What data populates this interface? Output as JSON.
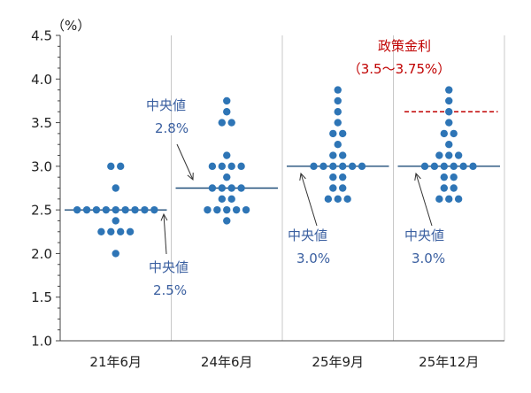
{
  "chart_data": {
    "type": "scatter",
    "unit_label": "（%）",
    "ylim": [
      1.0,
      4.5
    ],
    "yticks": [
      "1.0",
      "1.5",
      "2.0",
      "2.5",
      "3.0",
      "3.5",
      "4.0",
      "4.5"
    ],
    "ytick_values": [
      1.0,
      1.5,
      2.0,
      2.5,
      3.0,
      3.5,
      4.0,
      4.5
    ],
    "grid": "vertical-only",
    "categories": [
      "21年6月",
      "24年6月",
      "25年9月",
      "25年12月"
    ],
    "series": [
      {
        "category": "21年6月",
        "median": 2.5,
        "points": [
          {
            "y": 3.0,
            "n": 2
          },
          {
            "y": 2.75,
            "n": 1
          },
          {
            "y": 2.5,
            "n": 9
          },
          {
            "y": 2.375,
            "n": 1
          },
          {
            "y": 2.25,
            "n": 4
          },
          {
            "y": 2.0,
            "n": 1
          }
        ]
      },
      {
        "category": "24年6月",
        "median": 2.75,
        "points": [
          {
            "y": 3.75,
            "n": 1
          },
          {
            "y": 3.625,
            "n": 1
          },
          {
            "y": 3.5,
            "n": 2
          },
          {
            "y": 3.125,
            "n": 1
          },
          {
            "y": 3.0,
            "n": 4
          },
          {
            "y": 2.875,
            "n": 1
          },
          {
            "y": 2.75,
            "n": 4
          },
          {
            "y": 2.625,
            "n": 2
          },
          {
            "y": 2.5,
            "n": 5
          },
          {
            "y": 2.375,
            "n": 1
          }
        ]
      },
      {
        "category": "25年9月",
        "median": 3.0,
        "points": [
          {
            "y": 3.875,
            "n": 1
          },
          {
            "y": 3.75,
            "n": 1
          },
          {
            "y": 3.625,
            "n": 1
          },
          {
            "y": 3.5,
            "n": 1
          },
          {
            "y": 3.375,
            "n": 2
          },
          {
            "y": 3.25,
            "n": 1
          },
          {
            "y": 3.125,
            "n": 2
          },
          {
            "y": 3.0,
            "n": 6
          },
          {
            "y": 2.875,
            "n": 2
          },
          {
            "y": 2.75,
            "n": 2
          },
          {
            "y": 2.625,
            "n": 3
          }
        ]
      },
      {
        "category": "25年12月",
        "median": 3.0,
        "points": [
          {
            "y": 3.875,
            "n": 1
          },
          {
            "y": 3.75,
            "n": 1
          },
          {
            "y": 3.625,
            "n": 1
          },
          {
            "y": 3.5,
            "n": 1
          },
          {
            "y": 3.375,
            "n": 2
          },
          {
            "y": 3.25,
            "n": 1
          },
          {
            "y": 3.125,
            "n": 3
          },
          {
            "y": 3.0,
            "n": 6
          },
          {
            "y": 2.875,
            "n": 2
          },
          {
            "y": 2.75,
            "n": 2
          },
          {
            "y": 2.625,
            "n": 3
          }
        ]
      }
    ],
    "policy_rate": {
      "label": "政策金利",
      "range_label": "（3.5〜3.75%）",
      "value": 3.625,
      "category": "25年12月"
    },
    "annotations": [
      {
        "category": "21年6月",
        "label": "中央値",
        "value": "2.5%"
      },
      {
        "category": "24年6月",
        "label": "中央値",
        "value": "2.8%"
      },
      {
        "category": "25年9月",
        "label": "中央値",
        "value": "3.0%"
      },
      {
        "category": "25年12月",
        "label": "中央値",
        "value": "3.0%"
      }
    ],
    "colors": {
      "dot": "#2e75b6",
      "median_line": "#1f4e79",
      "policy_line": "#c00000",
      "annotation_text": "#3a5fa0",
      "policy_text": "#c00000",
      "grid": "#c8c8c8",
      "axis": "#444444"
    }
  }
}
